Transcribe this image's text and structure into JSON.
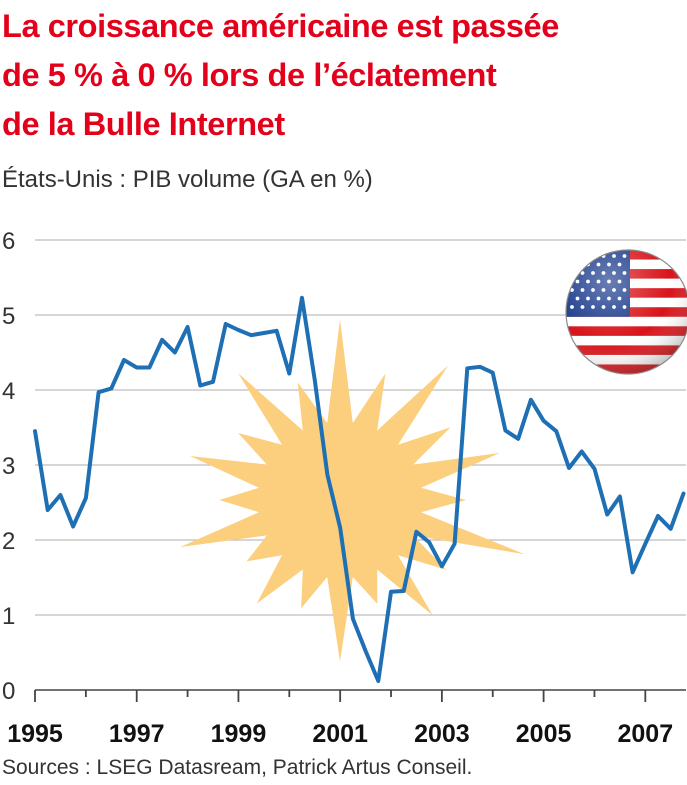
{
  "title_lines": [
    "La croissance américaine est passée",
    "de 5 % à 0 % lors de l’éclatement",
    "de la Bulle Internet"
  ],
  "subtitle": "États-Unis : PIB volume (GA en %)",
  "source": "Sources : LSEG Datasream, Patrick Artus Conseil.",
  "colors": {
    "title": "#e3001b",
    "line": "#1f6fb4",
    "burst": "#fbcf7e",
    "grid": "#bdbdbd"
  },
  "decorations": [
    "us-flag-badge",
    "explosion-burst"
  ],
  "chart_data": {
    "type": "line",
    "x": [
      1995.0,
      1995.25,
      1995.5,
      1995.75,
      1996.0,
      1996.25,
      1996.5,
      1996.75,
      1997.0,
      1997.25,
      1997.5,
      1997.75,
      1998.0,
      1998.25,
      1998.5,
      1998.75,
      1999.0,
      1999.25,
      1999.5,
      1999.75,
      2000.0,
      2000.25,
      2000.5,
      2000.75,
      2001.0,
      2001.25,
      2001.5,
      2001.75,
      2002.0,
      2002.25,
      2002.5,
      2002.75,
      2003.0,
      2003.25,
      2003.5,
      2003.75,
      2004.0,
      2004.25,
      2004.5,
      2004.75,
      2005.0,
      2005.25,
      2005.5,
      2005.75,
      2006.0,
      2006.25,
      2006.5,
      2006.75,
      2007.0,
      2007.25,
      2007.5,
      2007.75
    ],
    "series": [
      {
        "values": [
          3.45,
          2.4,
          2.6,
          2.18,
          2.56,
          3.97,
          4.02,
          4.4,
          4.3,
          4.3,
          4.67,
          4.5,
          4.84,
          4.06,
          4.11,
          4.88,
          4.8,
          4.73,
          4.76,
          4.79,
          4.22,
          5.23,
          4.14,
          2.87,
          2.16,
          0.95,
          0.52,
          0.12,
          1.31,
          1.32,
          2.11,
          1.97,
          1.65,
          1.95,
          4.29,
          4.31,
          4.23,
          3.46,
          3.35,
          3.87,
          3.59,
          3.45,
          2.96,
          3.18,
          2.95,
          2.34,
          2.58,
          1.57,
          1.95,
          2.32,
          2.15,
          2.62
        ]
      }
    ],
    "xlim": [
      1995.0,
      2007.8
    ],
    "ylim": [
      0,
      6
    ],
    "y_ticks": [
      "0",
      "1",
      "2",
      "3",
      "4",
      "5",
      "6"
    ],
    "x_ticks": [
      "1995",
      "1997",
      "1999",
      "2001",
      "2003",
      "2005",
      "2007"
    ],
    "grid": true,
    "legend": "none"
  }
}
